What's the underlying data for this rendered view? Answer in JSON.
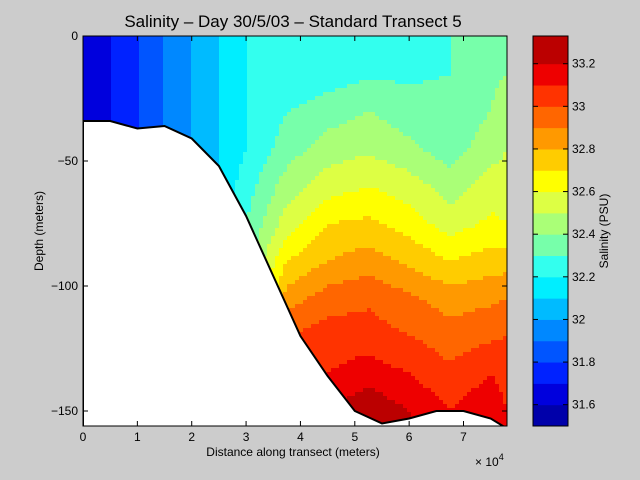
{
  "chart_data": {
    "type": "heatmap",
    "title": "Salinity – Day 30/5/03 – Standard Transect 5",
    "xlabel": "Distance along transect (meters)",
    "ylabel": "Depth (meters)",
    "x_multiplier": "× 10",
    "x_multiplier_exp": "4",
    "xlim": [
      0,
      78000
    ],
    "ylim": [
      -156,
      0
    ],
    "x_ticks": [
      0,
      10000,
      20000,
      30000,
      40000,
      50000,
      60000,
      70000
    ],
    "x_tick_labels": [
      "0",
      "1",
      "2",
      "3",
      "4",
      "5",
      "6",
      "7"
    ],
    "y_ticks": [
      0,
      -50,
      -100,
      -150
    ],
    "y_tick_labels": [
      "0",
      "−50",
      "−100",
      "−150"
    ],
    "colorbar": {
      "label": "Salinity (PSU)",
      "range": [
        31.5,
        33.33
      ],
      "levels": [
        31.5,
        31.6,
        31.7,
        31.8,
        31.9,
        32.0,
        32.1,
        32.2,
        32.3,
        32.4,
        32.5,
        32.6,
        32.7,
        32.8,
        32.9,
        33.0,
        33.1,
        33.2,
        33.33
      ],
      "ticks": [
        31.6,
        31.8,
        32.0,
        32.2,
        32.4,
        32.6,
        32.8,
        33.0,
        33.2
      ],
      "tick_labels": [
        "31.6",
        "31.8",
        "32",
        "32.2",
        "32.4",
        "32.6",
        "32.8",
        "33",
        "33.2"
      ],
      "colors": [
        "#0000aa",
        "#0000dd",
        "#0022ff",
        "#0055ff",
        "#0088ff",
        "#00bbff",
        "#00eeff",
        "#33ffee",
        "#77ffaa",
        "#aaff77",
        "#ddff44",
        "#ffff00",
        "#ffcc00",
        "#ff9900",
        "#ff6600",
        "#ff3300",
        "#ee0000",
        "#bb0000"
      ]
    },
    "bathymetry": {
      "x": [
        0,
        5000,
        10000,
        15000,
        20000,
        25000,
        30000,
        35000,
        40000,
        45000,
        50000,
        55000,
        60000,
        65000,
        70000,
        75000,
        78000
      ],
      "depth": [
        -34,
        -34,
        -37,
        -36,
        -41,
        -52,
        -72,
        -96,
        -120,
        -136,
        -150,
        -155,
        -153,
        -150,
        -150,
        -153,
        -157
      ]
    },
    "salinity_grid": {
      "x": [
        0,
        7500,
        15000,
        22500,
        30000,
        37500,
        45000,
        52500,
        60000,
        67500,
        75000,
        78000
      ],
      "depth": [
        0,
        -15,
        -30,
        -45,
        -60,
        -75,
        -90,
        -105,
        -120,
        -135,
        -150,
        -156
      ],
      "values": [
        [
          31.6,
          31.75,
          31.9,
          32.05,
          32.2,
          32.2,
          32.25,
          32.25,
          32.25,
          32.3,
          32.35,
          32.35
        ],
        [
          31.6,
          31.75,
          31.9,
          32.05,
          32.2,
          32.2,
          32.25,
          32.28,
          32.28,
          32.3,
          32.38,
          32.4
        ],
        [
          31.6,
          31.75,
          31.9,
          32.05,
          32.2,
          32.3,
          32.35,
          32.4,
          32.35,
          32.33,
          32.4,
          32.45
        ],
        [
          31.6,
          31.75,
          31.9,
          32.05,
          32.2,
          32.35,
          32.45,
          32.48,
          32.42,
          32.35,
          32.45,
          32.5
        ],
        [
          31.6,
          31.75,
          31.9,
          32.05,
          32.25,
          32.45,
          32.55,
          32.6,
          32.55,
          32.45,
          32.55,
          32.55
        ],
        [
          31.6,
          31.75,
          31.9,
          32.05,
          32.3,
          32.55,
          32.7,
          32.72,
          32.65,
          32.55,
          32.62,
          32.6
        ],
        [
          31.6,
          31.75,
          31.9,
          32.05,
          32.35,
          32.7,
          32.8,
          32.85,
          32.78,
          32.7,
          32.75,
          32.75
        ],
        [
          31.6,
          31.75,
          31.9,
          32.05,
          32.4,
          32.85,
          32.95,
          32.98,
          32.92,
          32.85,
          32.88,
          32.9
        ],
        [
          31.6,
          31.75,
          31.9,
          32.05,
          32.45,
          33.0,
          33.05,
          33.05,
          33.0,
          32.95,
          32.98,
          33.0
        ],
        [
          31.6,
          31.75,
          31.9,
          32.05,
          32.5,
          33.05,
          33.1,
          33.15,
          33.1,
          33.02,
          33.1,
          33.05
        ],
        [
          31.6,
          31.75,
          31.9,
          32.05,
          32.55,
          33.1,
          33.2,
          33.28,
          33.2,
          33.1,
          33.18,
          33.1
        ],
        [
          31.6,
          31.75,
          31.9,
          32.05,
          32.55,
          33.1,
          33.2,
          33.28,
          33.2,
          33.1,
          33.18,
          33.1
        ]
      ]
    }
  }
}
